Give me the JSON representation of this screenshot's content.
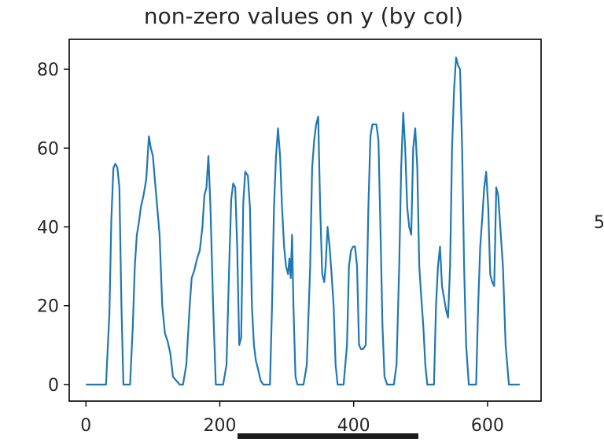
{
  "chart_data": {
    "type": "line",
    "title": "non-zero values on y (by col)",
    "xlabel": "",
    "ylabel": "",
    "xlim": [
      -25,
      680
    ],
    "ylim": [
      -4.2,
      87.6
    ],
    "xticks": [
      0,
      200,
      400,
      600
    ],
    "yticks": [
      0,
      20,
      40,
      60,
      80
    ],
    "grid": false,
    "line_color": "#1f77b4",
    "series": [
      {
        "x": [
          0,
          10,
          20,
          30,
          35,
          38,
          41,
          44,
          47,
          50,
          53,
          56,
          60,
          66,
          70,
          73,
          76,
          79,
          82,
          86,
          90,
          94,
          97,
          100,
          103,
          106,
          110,
          114,
          118,
          122,
          126,
          130,
          140,
          145,
          150,
          155,
          158,
          162,
          166,
          170,
          174,
          177,
          180,
          183,
          186,
          190,
          194,
          200,
          205,
          210,
          214,
          217,
          220,
          223,
          226,
          229,
          232,
          235,
          238,
          242,
          245,
          248,
          251,
          254,
          257,
          261,
          265,
          270,
          275,
          278,
          281,
          284,
          287,
          290,
          293,
          296,
          299,
          302,
          304,
          306,
          308,
          310,
          313,
          316,
          320,
          325,
          330,
          335,
          338,
          341,
          344,
          347,
          350,
          353,
          356,
          358,
          361,
          364,
          367,
          370,
          373,
          376,
          380,
          385,
          390,
          393,
          396,
          399,
          402,
          405,
          408,
          411,
          414,
          418,
          422,
          425,
          428,
          431,
          434,
          437,
          440,
          443,
          446,
          450,
          455,
          460,
          464,
          468,
          471,
          474,
          477,
          480,
          483,
          486,
          489,
          492,
          495,
          498,
          501,
          504,
          507,
          510,
          515,
          520,
          523,
          526,
          529,
          532,
          535,
          538,
          541,
          544,
          547,
          550,
          553,
          556,
          559,
          562,
          565,
          568,
          572,
          576,
          580,
          583,
          586,
          589,
          592,
          595,
          598,
          601,
          604,
          607,
          610,
          613,
          616,
          619,
          623,
          627,
          632,
          640,
          648
        ],
        "y": [
          0,
          0,
          0,
          0,
          18,
          42,
          55,
          56,
          55,
          50,
          20,
          0,
          0,
          0,
          15,
          30,
          38,
          41,
          45,
          48,
          52,
          63,
          60,
          58,
          52,
          46,
          38,
          20,
          13,
          11,
          8,
          2,
          0,
          0,
          5,
          20,
          27,
          29,
          32,
          34,
          40,
          48,
          50,
          58,
          45,
          20,
          0,
          0,
          0,
          5,
          30,
          47,
          51,
          50,
          35,
          10,
          12,
          46,
          54,
          53,
          45,
          20,
          10,
          6,
          4,
          1,
          0,
          0,
          0,
          20,
          45,
          58,
          65,
          58,
          45,
          35,
          30,
          28,
          32,
          27,
          38,
          20,
          2,
          0,
          0,
          0,
          5,
          30,
          55,
          62,
          66,
          68,
          45,
          28,
          26,
          30,
          40,
          35,
          28,
          20,
          5,
          0,
          0,
          0,
          10,
          30,
          34,
          35,
          35,
          30,
          10,
          9,
          9,
          10,
          45,
          63,
          66,
          66,
          66,
          62,
          40,
          15,
          2,
          0,
          0,
          0,
          5,
          30,
          55,
          69,
          60,
          45,
          40,
          38,
          60,
          65,
          55,
          30,
          22,
          15,
          5,
          0,
          0,
          0,
          20,
          30,
          35,
          25,
          22,
          19,
          17,
          30,
          60,
          75,
          83,
          81,
          80,
          60,
          30,
          10,
          0,
          0,
          0,
          0,
          20,
          35,
          42,
          50,
          54,
          45,
          28,
          26,
          25,
          50,
          48,
          40,
          30,
          10,
          0,
          0,
          0
        ]
      }
    ]
  },
  "right_edge_tick_fragment": "5"
}
